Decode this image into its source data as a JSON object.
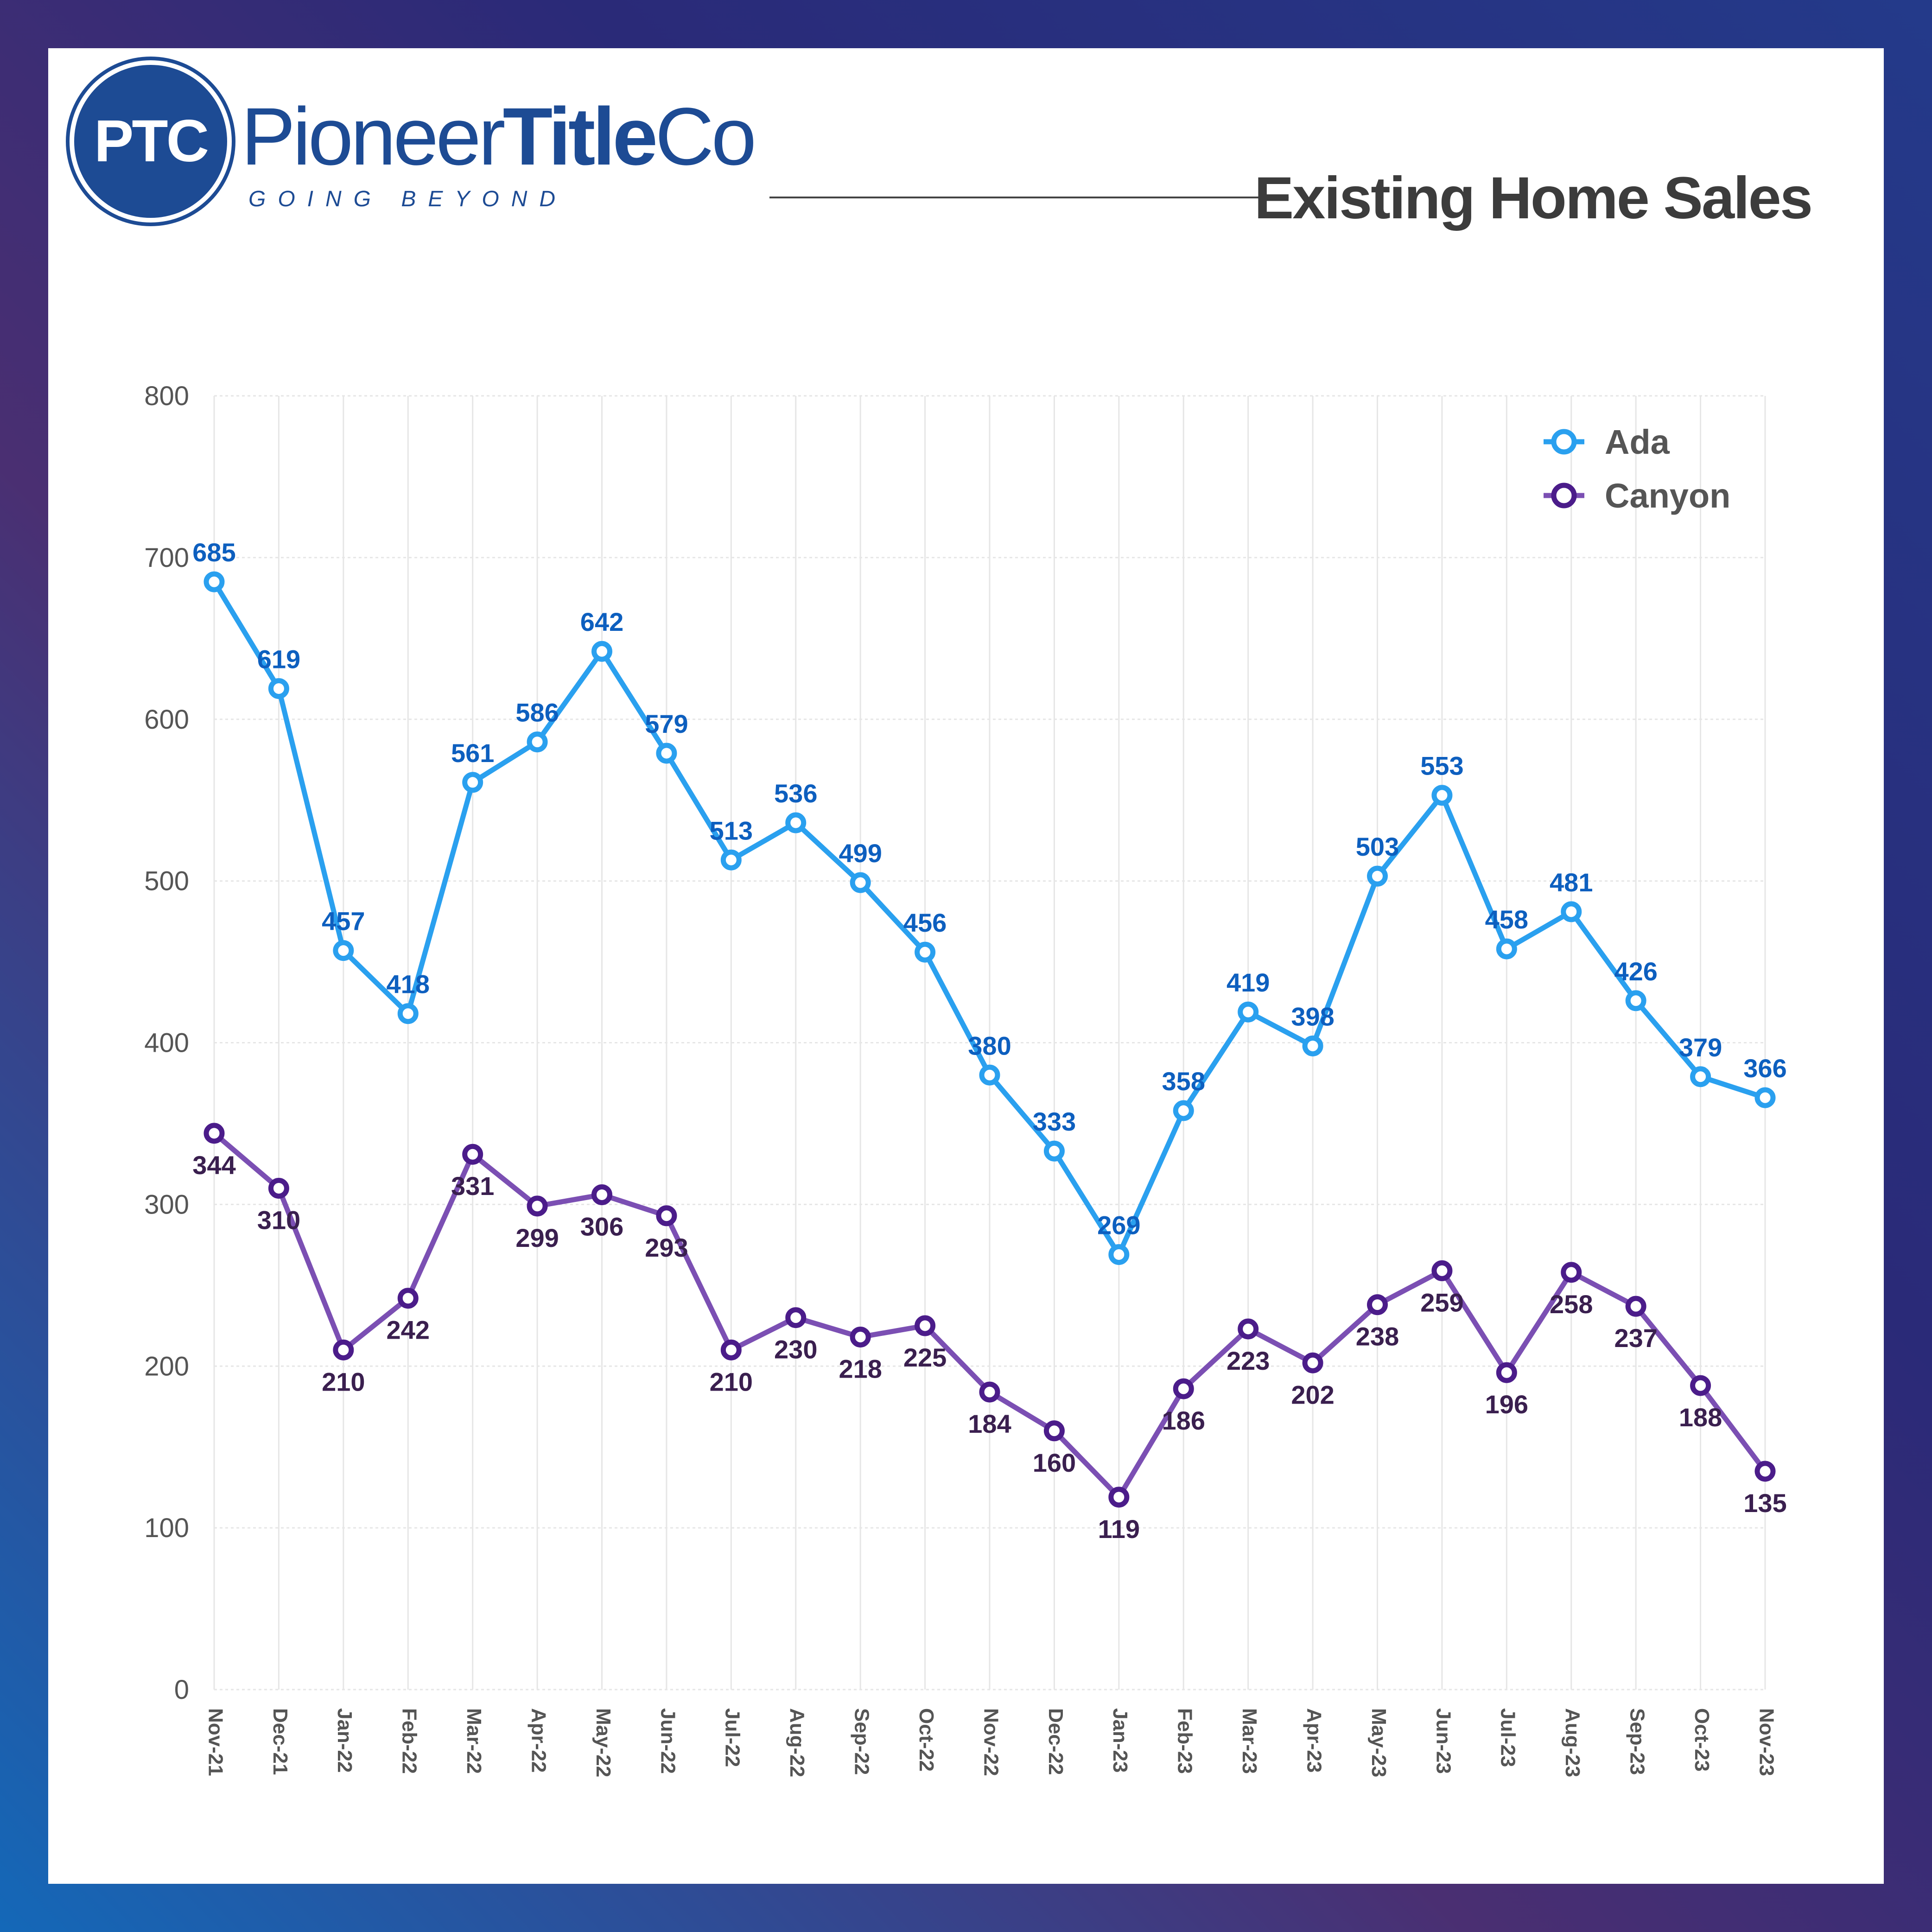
{
  "header": {
    "logo_initials": "PTC",
    "brand_regular": "Pioneer",
    "brand_bold": "Title",
    "brand_suffix": "Co",
    "tagline": "GOING BEYOND",
    "title": "Existing Home Sales"
  },
  "colors": {
    "ada_line": "#2aa0ef",
    "ada_label": "#0d5fbf",
    "canyon_line": "#7b4fb3",
    "canyon_marker": "#4b1c8a",
    "canyon_label": "#3a1f4f",
    "axis_text": "#555555",
    "grid": "#e6e6e6"
  },
  "chart_data": {
    "type": "line",
    "title": "Existing Home Sales",
    "xlabel": "",
    "ylabel": "",
    "ylim": [
      0,
      800
    ],
    "yticks": [
      0,
      100,
      200,
      300,
      400,
      500,
      600,
      700,
      800
    ],
    "grid": true,
    "legend_position": "top-right",
    "categories": [
      "Nov-21",
      "Dec-21",
      "Jan-22",
      "Feb-22",
      "Mar-22",
      "Apr-22",
      "May-22",
      "Jun-22",
      "Jul-22",
      "Aug-22",
      "Sep-22",
      "Oct-22",
      "Nov-22",
      "Dec-22",
      "Jan-23",
      "Feb-23",
      "Mar-23",
      "Apr-23",
      "May-23",
      "Jun-23",
      "Jul-23",
      "Aug-23",
      "Sep-23",
      "Oct-23",
      "Nov-23"
    ],
    "series": [
      {
        "name": "Ada",
        "values": [
          685,
          619,
          457,
          418,
          561,
          586,
          642,
          579,
          513,
          536,
          499,
          456,
          380,
          333,
          269,
          358,
          419,
          398,
          503,
          553,
          458,
          481,
          426,
          379,
          366
        ]
      },
      {
        "name": "Canyon",
        "values": [
          344,
          310,
          210,
          242,
          331,
          299,
          306,
          293,
          210,
          230,
          218,
          225,
          184,
          160,
          119,
          186,
          223,
          202,
          238,
          259,
          196,
          258,
          237,
          188,
          135
        ]
      }
    ]
  }
}
